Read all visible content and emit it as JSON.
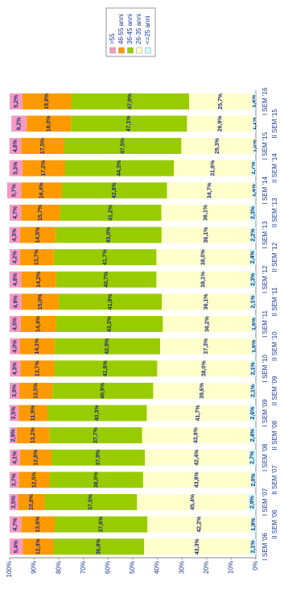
{
  "chart_data": {
    "type": "stacked_bar",
    "categories": [
      "I SEM '06",
      "II SEM '06",
      "I SEM '07",
      "II SEM '07",
      "I SEM '08",
      "II SEM '08",
      "I SEM '09",
      "II SEM '09",
      "I SEM '10",
      "II SEM '10",
      "I SEM '11",
      "II SEM '11",
      "I SEM '12",
      "II SEM '12",
      "I SEM '13",
      "II SEM '13",
      "I SEM '14",
      "II SEM '14",
      "I SEM '15",
      "II SEM '15",
      "I SEM '16"
    ],
    "series": [
      {
        "name": ">55",
        "color": "#f49ac1",
        "values": [
          5.4,
          4.7,
          3.5,
          3.7,
          4.1,
          2.9,
          3.5,
          3.9,
          4.3,
          4.0,
          4.5,
          4.9,
          4.8,
          4.2,
          4.3,
          4.7,
          5.7,
          5.3,
          4.8,
          6.2,
          5.2
        ],
        "value_labels": [
          "5,4%",
          "4,7%",
          "3,5%",
          "3,7%",
          "4,1%",
          "2,9%",
          "3,5%",
          "3,9%",
          "4,3%",
          "4,0%",
          "4,5%",
          "4,9%",
          "4,8%",
          "4,2%",
          "4,3%",
          "4,7%",
          "5,7%",
          "5,3%",
          "4,8%",
          "6,2%",
          "5,2%"
        ]
      },
      {
        "name": "46-55 anni",
        "color": "#ff9900",
        "values": [
          12.4,
          13.6,
          10.8,
          12.5,
          12.8,
          13.2,
          11.9,
          13.5,
          13.7,
          14.1,
          14.4,
          15.0,
          14.2,
          13.7,
          14.5,
          15.7,
          16.4,
          17.2,
          17.5,
          18.0,
          19.8
        ],
        "value_labels": [
          "12,4%",
          "13,6%",
          "10,8%",
          "12,5%",
          "12,8%",
          "13,2%",
          "11,9%",
          "13,5%",
          "13,7%",
          "14,1%",
          "14,4%",
          "15,0%",
          "14,2%",
          "13,7%",
          "14,5%",
          "15,7%",
          "16,4%",
          "17,2%",
          "17,5%",
          "18,0%",
          "19,8%"
        ]
      },
      {
        "name": "36-45 anni",
        "color": "#99cc00",
        "values": [
          36.8,
          37.6,
          37.5,
          38.0,
          37.9,
          37.7,
          40.3,
          40.9,
          41.8,
          42.9,
          43.3,
          41.9,
          40.7,
          41.7,
          43.0,
          41.2,
          42.8,
          44.3,
          47.5,
          47.1,
          47.9
        ],
        "value_labels": [
          "36,8%",
          "37,6%",
          "37,5%",
          "38,0%",
          "37,9%",
          "37,7%",
          "40,3%",
          "40,9%",
          "41,8%",
          "42,9%",
          "43,3%",
          "41,9%",
          "40,7%",
          "41,7%",
          "43,0%",
          "41,2%",
          "42,8%",
          "44,3%",
          "47,5%",
          "47,1%",
          "47,9%"
        ]
      },
      {
        "name": "26-35 anni",
        "color": "#ffffcc",
        "values": [
          43.3,
          42.2,
          45.4,
          43.8,
          42.4,
          43.8,
          41.7,
          39.6,
          38.0,
          37.3,
          36.2,
          36.1,
          38.1,
          38.0,
          36.1,
          36.1,
          34.7,
          31.6,
          29.3,
          26.9,
          25.7
        ],
        "value_labels": [
          "43,3%",
          "42,2%",
          "45,4%",
          "43,8%",
          "42,4%",
          "43,8%",
          "41,7%",
          "39,6%",
          "38,0%",
          "37,3%",
          "36,2%",
          "36,1%",
          "38,1%",
          "38,0%",
          "36,1%",
          "36,1%",
          "34,7%",
          "31,6%",
          "29,3%",
          "26,9%",
          "25,7%"
        ]
      },
      {
        "name": "<=25 anni",
        "color": "#ccffff",
        "values": [
          2.1,
          1.9,
          2.9,
          2.0,
          2.7,
          2.4,
          2.6,
          2.1,
          2.1,
          1.6,
          1.6,
          2.1,
          2.3,
          2.4,
          2.2,
          2.3,
          1.4,
          1.7,
          1.0,
          1.1,
          1.4
        ],
        "value_labels": [
          "2,1%",
          "1,9%",
          "2,9%",
          "2,0%",
          "2,7%",
          "2,4%",
          "2,6%",
          "2,1%",
          "2,1%",
          "1,6%",
          "1,6%",
          "2,1%",
          "2,3%",
          "2,4%",
          "2,2%",
          "2,3%",
          "1,4%",
          "1,7%",
          "1,0%",
          "1,1%",
          "1,4%"
        ]
      }
    ],
    "ylim": [
      0,
      100
    ],
    "yticks": [
      {
        "value": 0,
        "label": "0%"
      },
      {
        "value": 10,
        "label": "10%"
      },
      {
        "value": 20,
        "label": "20%"
      },
      {
        "value": 30,
        "label": "30%"
      },
      {
        "value": 40,
        "label": "40%"
      },
      {
        "value": 50,
        "label": "50%"
      },
      {
        "value": 60,
        "label": "60%"
      },
      {
        "value": 70,
        "label": "70%"
      },
      {
        "value": 80,
        "label": "80%"
      },
      {
        "value": 90,
        "label": "90%"
      },
      {
        "value": 100,
        "label": "100%"
      }
    ],
    "legend": "right"
  }
}
